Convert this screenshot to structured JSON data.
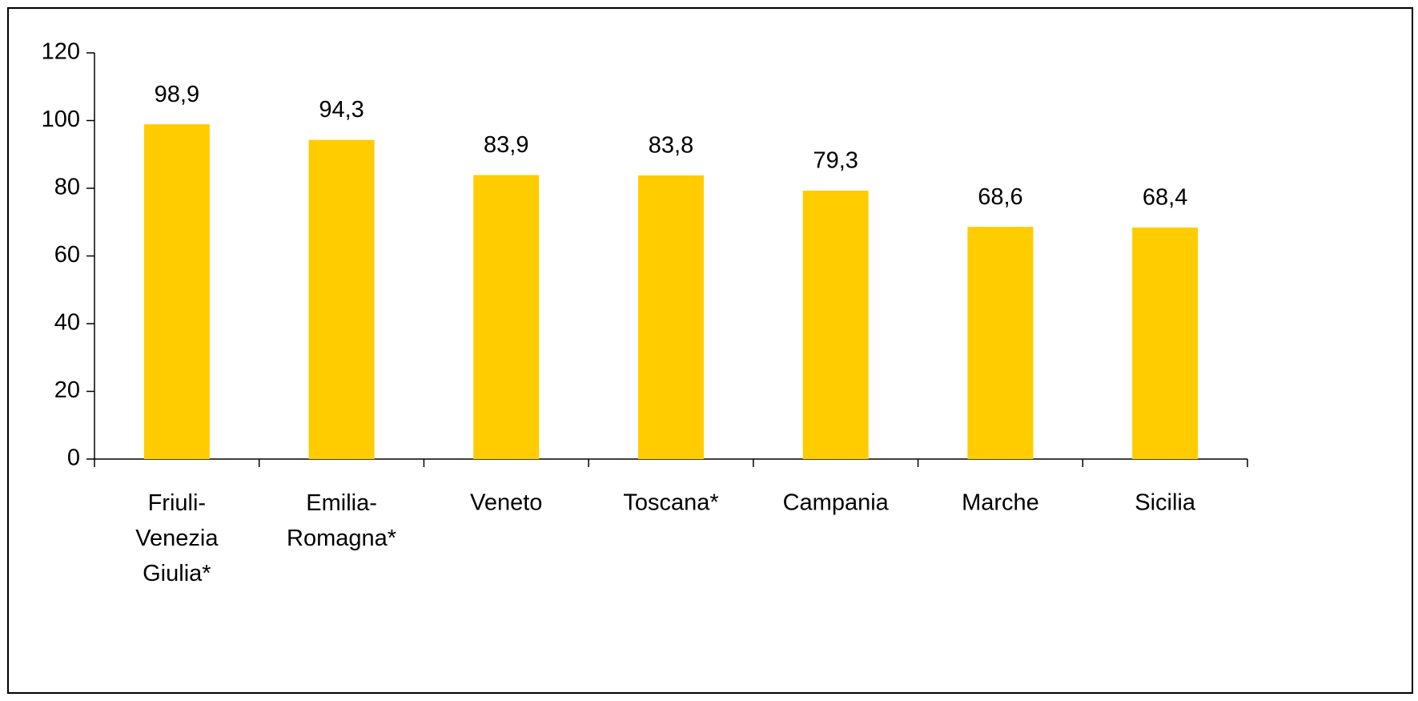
{
  "chart_data": {
    "type": "bar",
    "categories": [
      "Friuli-Venezia Giulia*",
      "Emilia-Romagna*",
      "Veneto",
      "Toscana*",
      "Campania",
      "Marche",
      "Sicilia"
    ],
    "values": [
      98.9,
      94.3,
      83.9,
      83.8,
      79.3,
      68.6,
      68.4
    ],
    "value_labels": [
      "98,9",
      "94,3",
      "83,9",
      "83,8",
      "79,3",
      "68,6",
      "68,4"
    ],
    "color": "#ffcc00",
    "ylim": [
      0,
      120
    ],
    "yticks": [
      0,
      20,
      40,
      60,
      80,
      100,
      120
    ],
    "grid": false
  }
}
